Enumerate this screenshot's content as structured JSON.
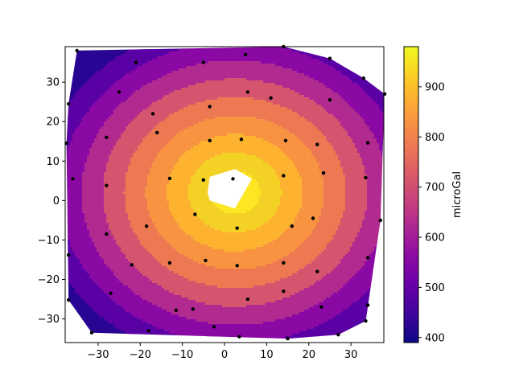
{
  "chart_data": {
    "type": "contour",
    "title": "",
    "xlabel": "",
    "ylabel": "",
    "xlim": [
      -37.8,
      37.8
    ],
    "ylim": [
      -36.0,
      39.0
    ],
    "xticks": [
      -30,
      -20,
      -10,
      0,
      10,
      20,
      30
    ],
    "yticks": [
      -30,
      -20,
      -10,
      0,
      10,
      20,
      30
    ],
    "colorbar": {
      "label": "microGal",
      "range": [
        390,
        980
      ],
      "ticks": [
        400,
        500,
        600,
        700,
        800,
        900
      ],
      "colormap": "plasma"
    },
    "levels": [
      390,
      450,
      510,
      570,
      630,
      690,
      750,
      810,
      870,
      930,
      980
    ],
    "level_colors": [
      "#2a0593",
      "#5a01a5",
      "#8a09a5",
      "#b12a90",
      "#d5546e",
      "#ed7953",
      "#f89441",
      "#fdb32f",
      "#f4d125",
      "#fde725"
    ],
    "field_model": {
      "center": [
        2.5,
        2.0
      ],
      "peak": 1000,
      "decay_per_unit": 11.8,
      "anisotropy_x": 1.0,
      "anisotropy_y": 0.92
    },
    "points": [
      [
        -35,
        38
      ],
      [
        -21,
        35
      ],
      [
        -5,
        35
      ],
      [
        5,
        37
      ],
      [
        14,
        39
      ],
      [
        25,
        36
      ],
      [
        33,
        31
      ],
      [
        38,
        27
      ],
      [
        -37,
        24.5
      ],
      [
        -25,
        27.5
      ],
      [
        -17,
        22
      ],
      [
        -3.5,
        23.8
      ],
      [
        5.5,
        27.5
      ],
      [
        11,
        26
      ],
      [
        25,
        25.5
      ],
      [
        -37.5,
        14.5
      ],
      [
        -28,
        16
      ],
      [
        -16,
        17.2
      ],
      [
        -3.5,
        15.2
      ],
      [
        4,
        15.5
      ],
      [
        14.5,
        15.2
      ],
      [
        22,
        14.2
      ],
      [
        34,
        14.6
      ],
      [
        -36,
        5.5
      ],
      [
        -28,
        3.8
      ],
      [
        -13,
        5.6
      ],
      [
        -5,
        5.2
      ],
      [
        2,
        5.5
      ],
      [
        14,
        6.3
      ],
      [
        23.5,
        7
      ],
      [
        33.5,
        5.8
      ],
      [
        -7,
        -3.5
      ],
      [
        37,
        -5
      ],
      [
        21,
        -4.5
      ],
      [
        16,
        -6.5
      ],
      [
        3,
        -7
      ],
      [
        -18.5,
        -6.5
      ],
      [
        -28,
        -8.5
      ],
      [
        -37,
        -13.8
      ],
      [
        -22,
        -16.3
      ],
      [
        -13,
        -15.8
      ],
      [
        -4.5,
        -15.2
      ],
      [
        3,
        -16.5
      ],
      [
        14,
        -15.8
      ],
      [
        22,
        -18
      ],
      [
        34,
        -14.5
      ],
      [
        -37,
        -25.2
      ],
      [
        -27,
        -23.5
      ],
      [
        -7.5,
        -27.5
      ],
      [
        5.5,
        -25
      ],
      [
        14,
        -23
      ],
      [
        23,
        -27
      ],
      [
        34,
        -26.5
      ],
      [
        -31.5,
        -33.5
      ],
      [
        -18,
        -33
      ],
      [
        -11.5,
        -27.8
      ],
      [
        -2.5,
        -32
      ],
      [
        3.5,
        -34.5
      ],
      [
        15,
        -35
      ],
      [
        27,
        -34
      ],
      [
        33.5,
        -30.5
      ]
    ]
  }
}
